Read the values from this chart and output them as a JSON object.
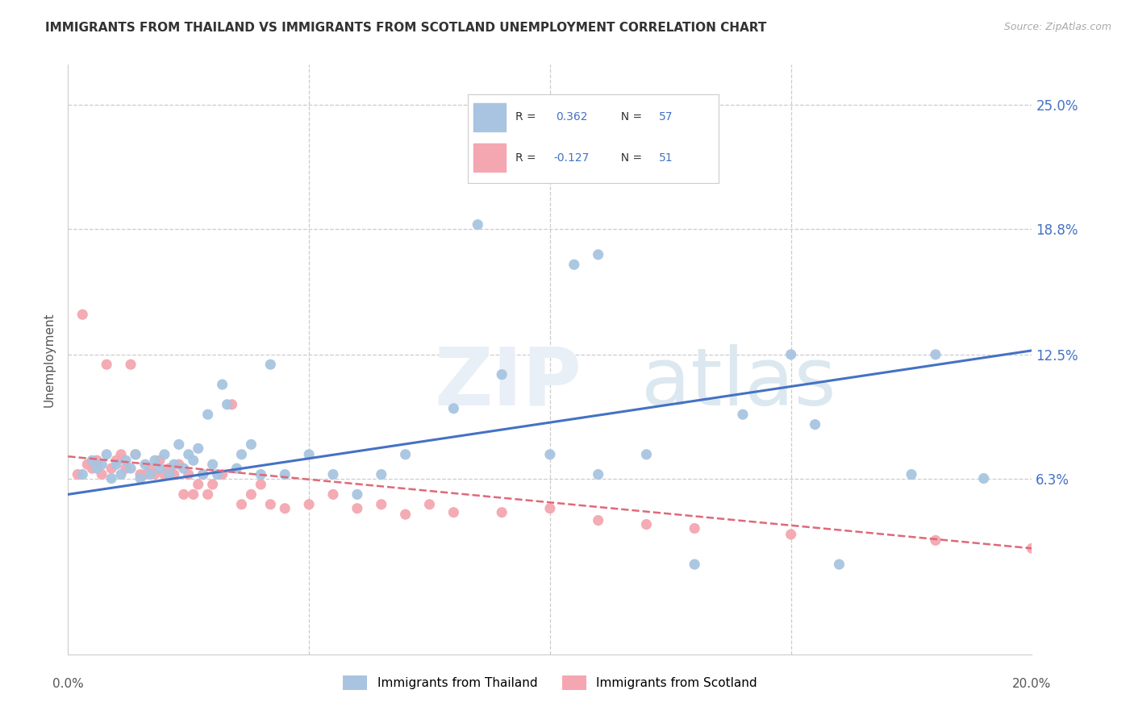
{
  "title": "IMMIGRANTS FROM THAILAND VS IMMIGRANTS FROM SCOTLAND UNEMPLOYMENT CORRELATION CHART",
  "source": "Source: ZipAtlas.com",
  "ylabel": "Unemployment",
  "ytick_values": [
    0.063,
    0.125,
    0.188,
    0.25
  ],
  "ytick_labels": [
    "6.3%",
    "12.5%",
    "18.8%",
    "25.0%"
  ],
  "xlim": [
    0.0,
    0.2
  ],
  "ylim": [
    -0.025,
    0.27
  ],
  "legend_r1_text": "R =  0.362   N = 57",
  "legend_r2_text": "R = -0.127   N = 51",
  "thailand_color": "#a8c4e0",
  "scotland_color": "#f4a7b0",
  "trend_thailand_color": "#4472c4",
  "trend_scotland_color": "#e06878",
  "thailand_x": [
    0.003,
    0.005,
    0.006,
    0.007,
    0.008,
    0.009,
    0.01,
    0.011,
    0.012,
    0.013,
    0.014,
    0.015,
    0.016,
    0.017,
    0.018,
    0.019,
    0.02,
    0.021,
    0.022,
    0.023,
    0.024,
    0.025,
    0.026,
    0.027,
    0.028,
    0.029,
    0.03,
    0.031,
    0.032,
    0.033,
    0.035,
    0.036,
    0.038,
    0.04,
    0.042,
    0.045,
    0.05,
    0.055,
    0.06,
    0.065,
    0.07,
    0.08,
    0.09,
    0.1,
    0.105,
    0.11,
    0.12,
    0.13,
    0.14,
    0.15,
    0.16,
    0.175,
    0.19,
    0.085,
    0.11,
    0.155,
    0.18
  ],
  "thailand_y": [
    0.065,
    0.072,
    0.068,
    0.07,
    0.075,
    0.063,
    0.07,
    0.065,
    0.072,
    0.068,
    0.075,
    0.063,
    0.07,
    0.065,
    0.072,
    0.068,
    0.075,
    0.065,
    0.07,
    0.08,
    0.068,
    0.075,
    0.072,
    0.078,
    0.065,
    0.095,
    0.07,
    0.065,
    0.11,
    0.1,
    0.068,
    0.075,
    0.08,
    0.065,
    0.12,
    0.065,
    0.075,
    0.065,
    0.055,
    0.065,
    0.075,
    0.098,
    0.115,
    0.075,
    0.17,
    0.065,
    0.075,
    0.02,
    0.095,
    0.125,
    0.02,
    0.065,
    0.063,
    0.19,
    0.175,
    0.09,
    0.125
  ],
  "scotland_x": [
    0.002,
    0.003,
    0.004,
    0.005,
    0.006,
    0.007,
    0.008,
    0.009,
    0.01,
    0.011,
    0.012,
    0.013,
    0.014,
    0.015,
    0.016,
    0.017,
    0.018,
    0.019,
    0.02,
    0.021,
    0.022,
    0.023,
    0.024,
    0.025,
    0.026,
    0.027,
    0.028,
    0.029,
    0.03,
    0.032,
    0.034,
    0.036,
    0.038,
    0.04,
    0.042,
    0.045,
    0.05,
    0.055,
    0.06,
    0.065,
    0.07,
    0.075,
    0.08,
    0.09,
    0.1,
    0.11,
    0.12,
    0.13,
    0.15,
    0.18,
    0.2
  ],
  "scotland_y": [
    0.065,
    0.145,
    0.07,
    0.068,
    0.072,
    0.065,
    0.12,
    0.068,
    0.072,
    0.075,
    0.068,
    0.12,
    0.075,
    0.065,
    0.065,
    0.068,
    0.065,
    0.072,
    0.065,
    0.068,
    0.065,
    0.07,
    0.055,
    0.065,
    0.055,
    0.06,
    0.065,
    0.055,
    0.06,
    0.065,
    0.1,
    0.05,
    0.055,
    0.06,
    0.05,
    0.048,
    0.05,
    0.055,
    0.048,
    0.05,
    0.045,
    0.05,
    0.046,
    0.046,
    0.048,
    0.042,
    0.04,
    0.038,
    0.035,
    0.032,
    0.028
  ],
  "thai_trend_x0": 0.0,
  "thai_trend_y0": 0.055,
  "thai_trend_x1": 0.2,
  "thai_trend_y1": 0.127,
  "scot_trend_x0": 0.0,
  "scot_trend_y0": 0.074,
  "scot_trend_x1": 0.2,
  "scot_trend_y1": 0.028
}
